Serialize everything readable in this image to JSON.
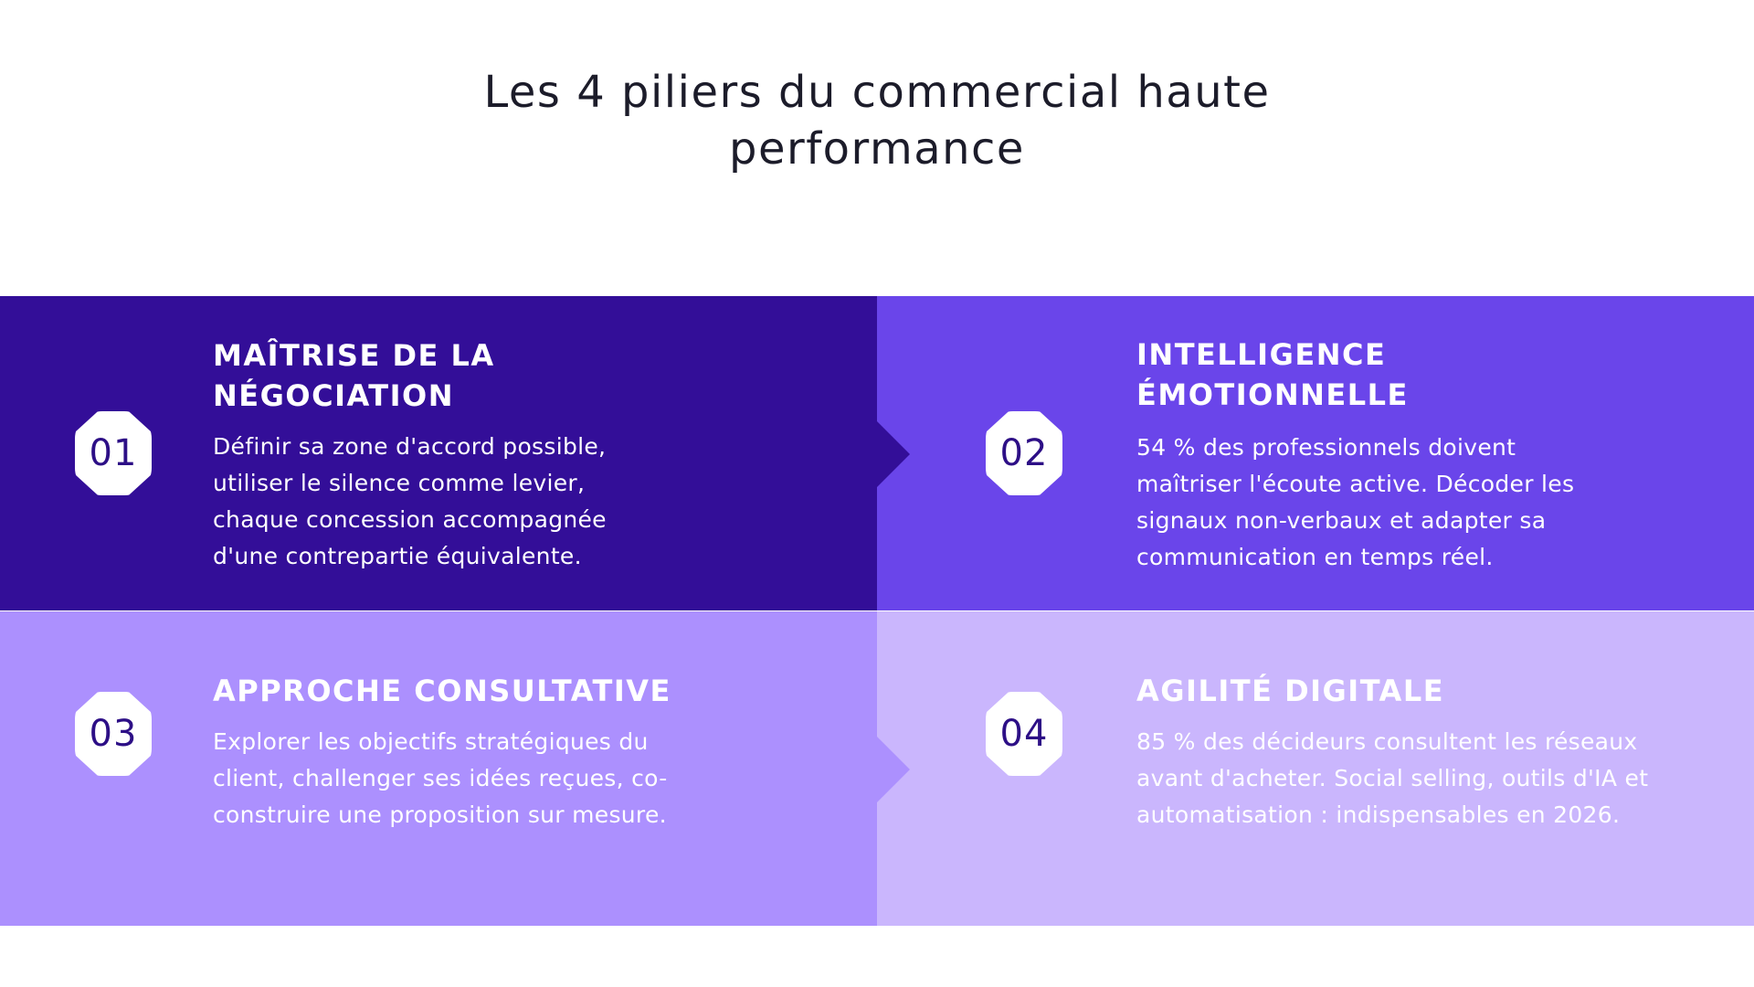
{
  "title": {
    "line1": "Les 4 piliers du commercial haute",
    "line2": "performance"
  },
  "colors": {
    "panel1": "#330e98",
    "panel2": "#6a45ea",
    "panel3": "#ac90fe",
    "panel4": "#cab6fd",
    "badge_text": "#2d0f86"
  },
  "pillars": [
    {
      "number": "01",
      "heading": [
        "MAÎTRISE DE LA",
        "NÉGOCIATION"
      ],
      "lines": [
        "Définir sa zone d'accord possible,",
        "utiliser le silence comme levier,",
        "chaque concession accompagnée",
        "d'une contrepartie équivalente."
      ]
    },
    {
      "number": "02",
      "heading": [
        "INTELLIGENCE",
        "ÉMOTIONNELLE"
      ],
      "lines": [
        "54 % des professionnels doivent",
        "maîtriser l'écoute active. Décoder les",
        "signaux non-verbaux et adapter sa",
        "communication en temps réel."
      ]
    },
    {
      "number": "03",
      "heading": [
        "APPROCHE CONSULTATIVE"
      ],
      "lines": [
        "Explorer les objectifs stratégiques du",
        "client, challenger ses idées reçues, co-",
        "construire une proposition sur mesure."
      ]
    },
    {
      "number": "04",
      "heading": [
        "AGILITÉ DIGITALE"
      ],
      "lines": [
        "85 % des décideurs consultent les réseaux",
        "avant d'acheter. Social selling, outils d'IA et",
        "automatisation : indispensables en 2026."
      ]
    }
  ]
}
